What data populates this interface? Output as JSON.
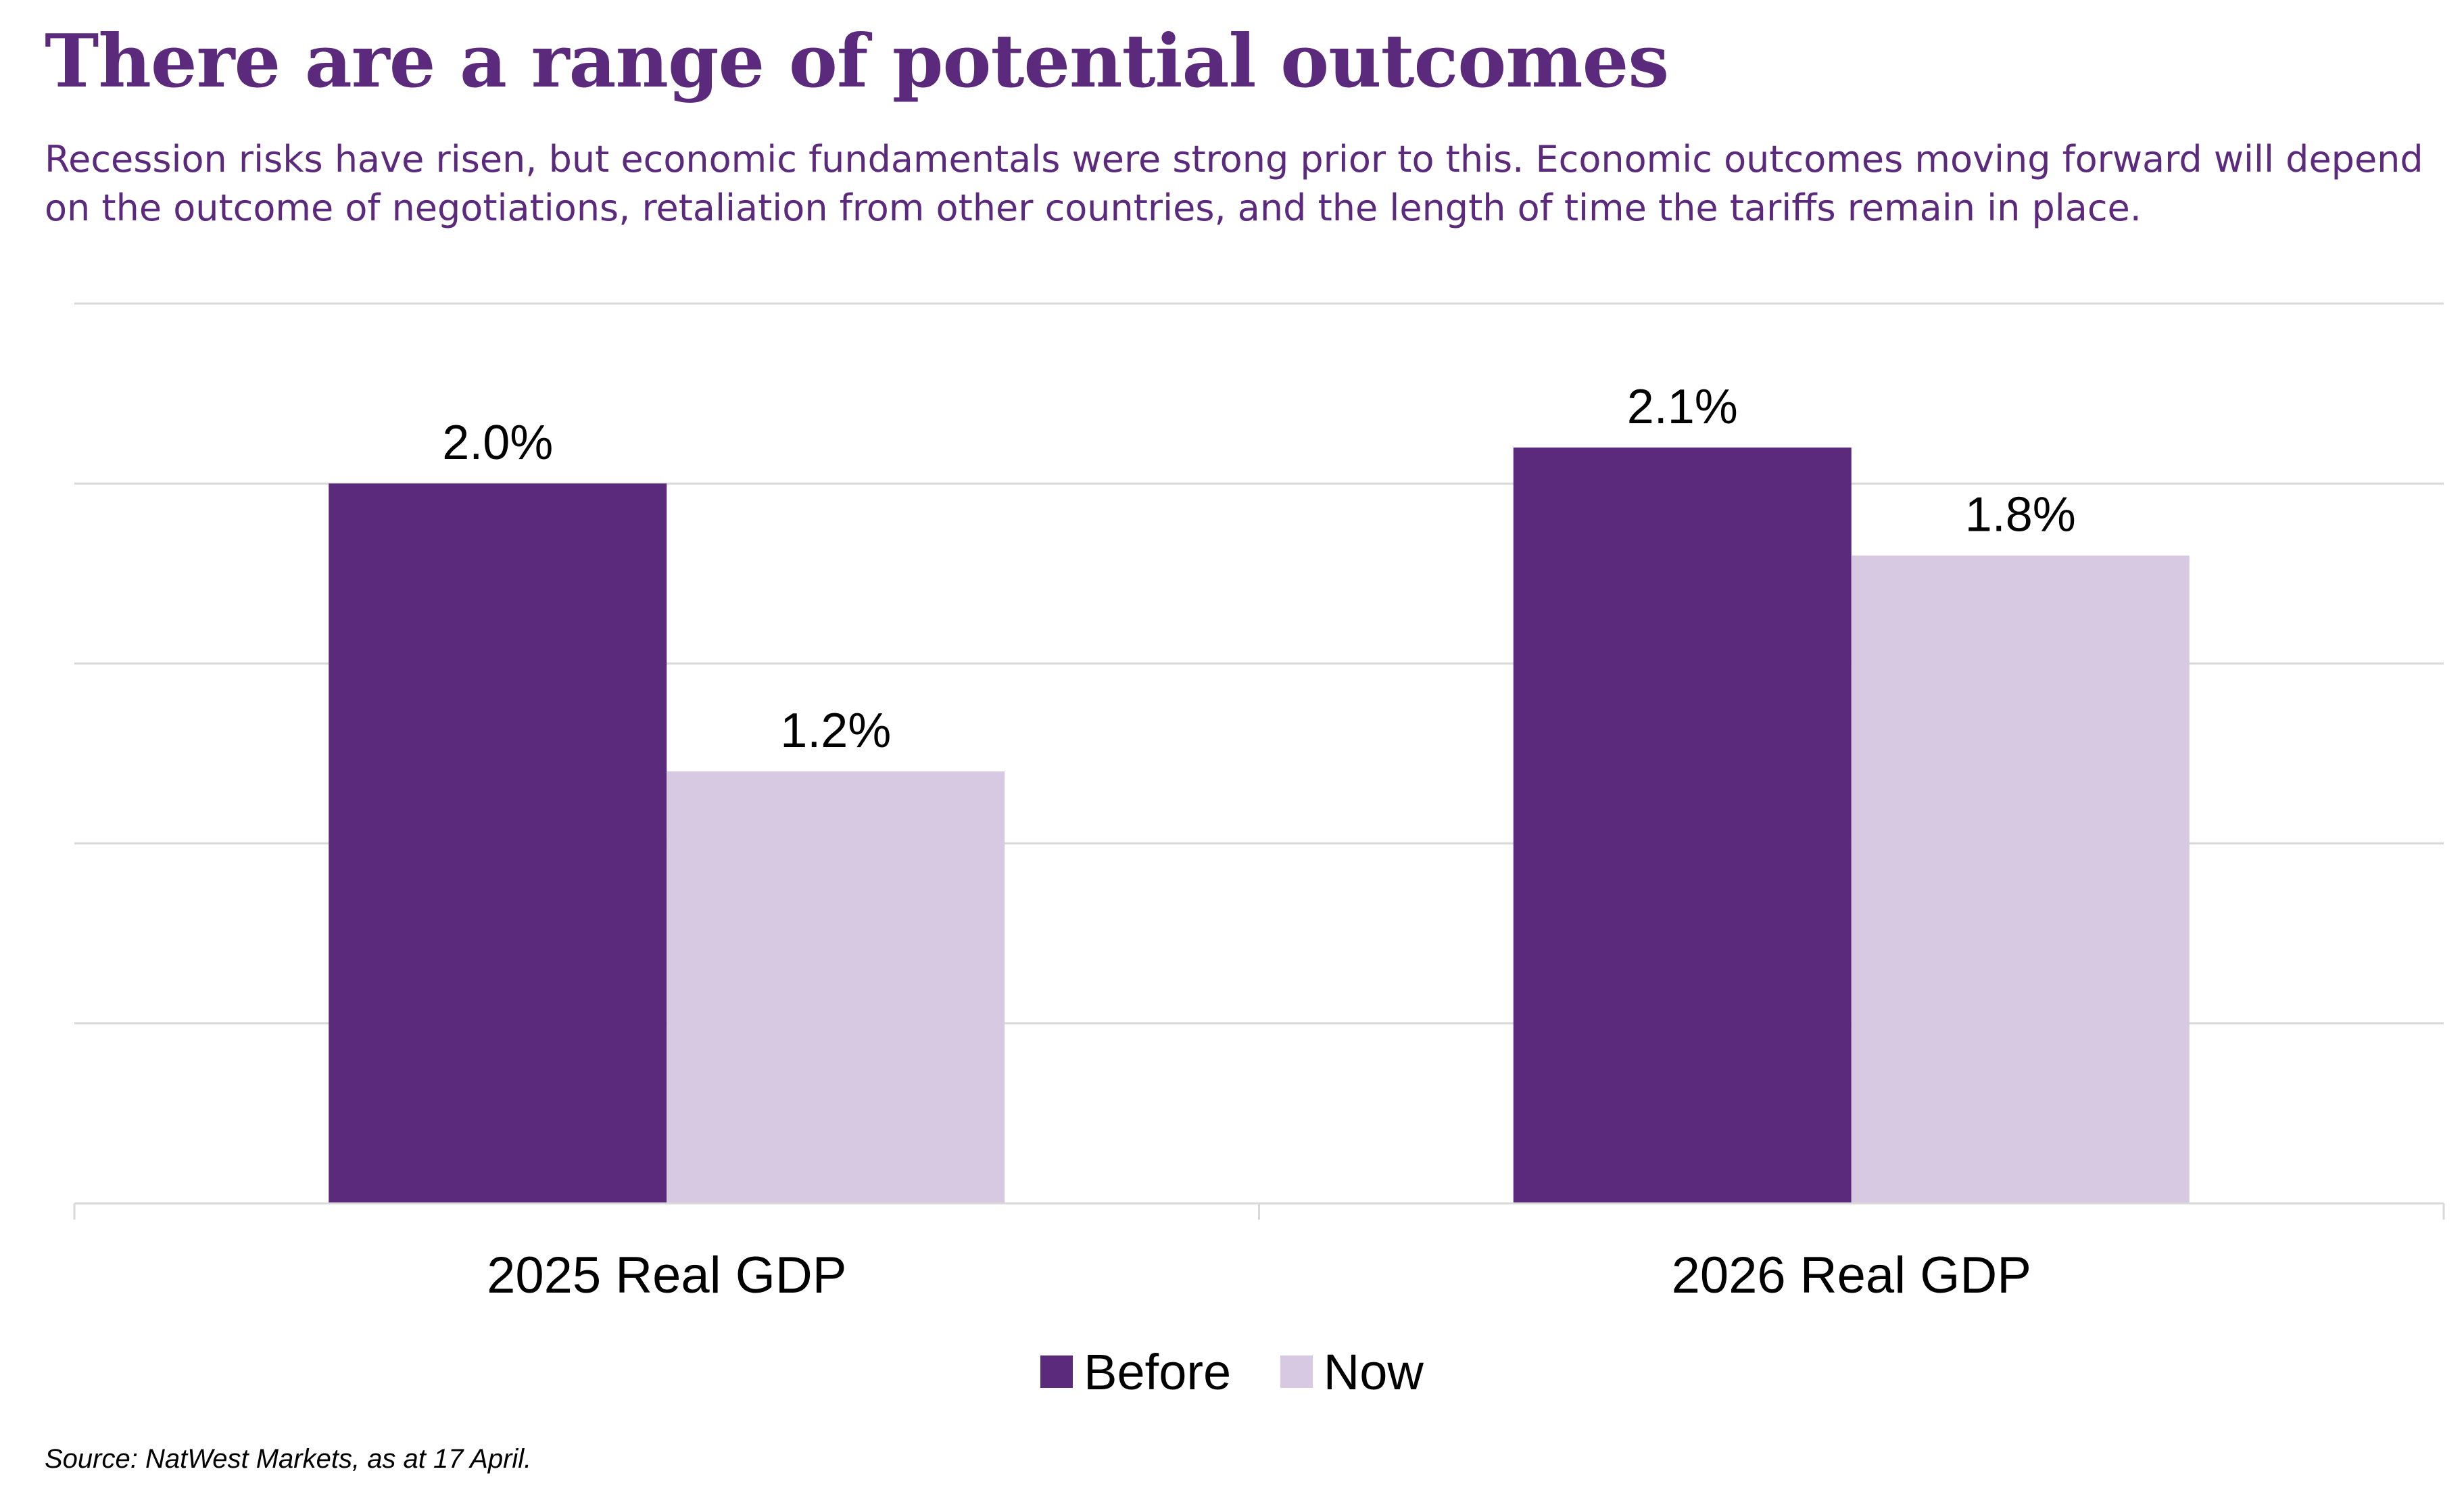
{
  "header": {
    "title": "There are a range of potential outcomes",
    "subtitle": "Recession risks have risen, but economic fundamentals were strong prior to this. Economic outcomes moving forward will depend on the outcome of negotiations, retaliation from other countries, and the length of time the tariffs remain in place."
  },
  "colors": {
    "title": "#5b2a7c",
    "before": "#5b2a7c",
    "now": "#d7c9e1",
    "grid": "#d9d9d9"
  },
  "chart_data": {
    "type": "bar",
    "title": "",
    "xlabel": "",
    "ylabel": "",
    "categories": [
      "2025 Real GDP",
      "2026 Real GDP"
    ],
    "series": [
      {
        "name": "Before",
        "values": [
          2.0,
          2.1
        ],
        "labels": [
          "2.0%",
          "2.1%"
        ],
        "color": "#5b2a7c"
      },
      {
        "name": "Now",
        "values": [
          1.2,
          1.8
        ],
        "labels": [
          "1.2%",
          "1.8%"
        ],
        "color": "#d7c9e1"
      }
    ],
    "ylim": [
      0,
      2.5
    ],
    "ygrid_step": 0.5,
    "grid": true,
    "y_tick_labels_shown": false,
    "legend": "bottom-center"
  },
  "footer": {
    "source": "Source: NatWest Markets, as at 17 April."
  }
}
